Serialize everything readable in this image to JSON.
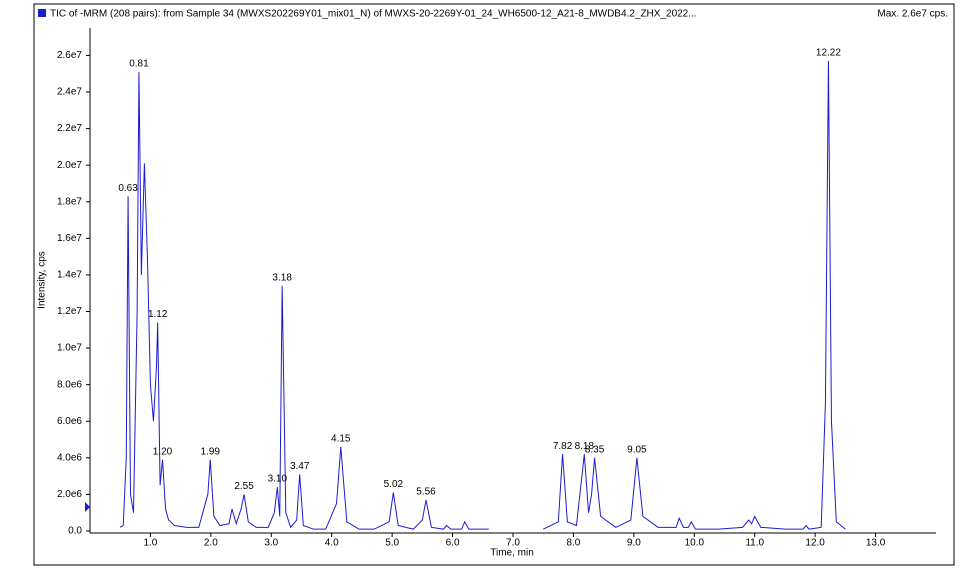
{
  "chart_data": {
    "type": "line",
    "title": "TIC of -MRM (208 pairs): from Sample 34 (MWXS202269Y01_mix01_N) of MWXS-20-2269Y-01_24_WH6500-12_A21-8_MWDB4.2_ZHX_2022...",
    "max_label": "Max. 2.6e7 cps.",
    "x_label": "Time, min",
    "y_label": "Intensity, cps",
    "xlim": [
      0,
      14
    ],
    "ylim": [
      0,
      27500000
    ],
    "xticks": [
      {
        "value": 1,
        "label": "1.0"
      },
      {
        "value": 2,
        "label": "2.0"
      },
      {
        "value": 3,
        "label": "3.0"
      },
      {
        "value": 4,
        "label": "4.0"
      },
      {
        "value": 5,
        "label": "5.0"
      },
      {
        "value": 6,
        "label": "6.0"
      },
      {
        "value": 7,
        "label": "7.0"
      },
      {
        "value": 8,
        "label": "8.0"
      },
      {
        "value": 9,
        "label": "9.0"
      },
      {
        "value": 10,
        "label": "10.0"
      },
      {
        "value": 11,
        "label": "11.0"
      },
      {
        "value": 12,
        "label": "12.0"
      },
      {
        "value": 13,
        "label": "13.0"
      }
    ],
    "yticks": [
      {
        "value": 0,
        "label": "0.0"
      },
      {
        "value": 2000000,
        "label": "2.0e6"
      },
      {
        "value": 4000000,
        "label": "4.0e6"
      },
      {
        "value": 6000000,
        "label": "6.0e6"
      },
      {
        "value": 8000000,
        "label": "8.0e6"
      },
      {
        "value": 10000000,
        "label": "1.0e7"
      },
      {
        "value": 12000000,
        "label": "1.2e7"
      },
      {
        "value": 14000000,
        "label": "1.4e7"
      },
      {
        "value": 16000000,
        "label": "1.6e7"
      },
      {
        "value": 18000000,
        "label": "1.8e7"
      },
      {
        "value": 20000000,
        "label": "2.0e7"
      },
      {
        "value": 22000000,
        "label": "2.2e7"
      },
      {
        "value": 24000000,
        "label": "2.4e7"
      },
      {
        "value": 26000000,
        "label": "2.6e7"
      }
    ],
    "x": [
      0.5,
      0.55,
      0.6,
      0.63,
      0.67,
      0.72,
      0.78,
      0.81,
      0.85,
      0.9,
      0.95,
      1.0,
      1.05,
      1.1,
      1.12,
      1.16,
      1.2,
      1.25,
      1.3,
      1.4,
      1.6,
      1.8,
      1.95,
      1.99,
      2.05,
      2.15,
      2.3,
      2.35,
      2.42,
      2.5,
      2.55,
      2.62,
      2.75,
      2.95,
      3.05,
      3.1,
      3.14,
      3.18,
      3.24,
      3.32,
      3.42,
      3.47,
      3.53,
      3.7,
      3.9,
      4.08,
      4.15,
      4.25,
      4.45,
      4.7,
      4.95,
      5.02,
      5.1,
      5.35,
      5.5,
      5.56,
      5.65,
      5.85,
      5.9,
      5.97,
      6.15,
      6.2,
      6.27,
      6.45,
      6.6,
      7.0,
      7.5,
      7.75,
      7.82,
      7.9,
      8.05,
      8.18,
      8.25,
      8.3,
      8.35,
      8.45,
      8.7,
      8.95,
      9.05,
      9.15,
      9.4,
      9.7,
      9.75,
      9.82,
      9.9,
      9.95,
      10.02,
      10.4,
      10.8,
      10.9,
      10.95,
      11.0,
      11.1,
      11.5,
      11.8,
      11.85,
      11.9,
      12.1,
      12.17,
      12.22,
      12.27,
      12.35,
      12.5
    ],
    "series": [
      {
        "name": "TIC of -MRM (208 pairs)",
        "color": "#1c1cd0",
        "values": [
          200000,
          300000,
          4000000,
          18300000,
          2000000,
          1000000,
          12000000,
          25100000,
          14000000,
          20100000,
          15000000,
          8000000,
          6000000,
          9000000,
          11400000,
          2500000,
          3900000,
          1200000,
          600000,
          300000,
          200000,
          200000,
          2000000,
          3900000,
          800000,
          300000,
          400000,
          1200000,
          400000,
          1200000,
          2000000,
          500000,
          200000,
          200000,
          1000000,
          2400000,
          800000,
          13400000,
          1000000,
          200000,
          600000,
          3100000,
          300000,
          100000,
          100000,
          1500000,
          4600000,
          500000,
          100000,
          100000,
          500000,
          2100000,
          300000,
          100000,
          600000,
          1700000,
          200000,
          100000,
          300000,
          100000,
          100000,
          500000,
          100000,
          100000,
          100000,
          null,
          100000,
          500000,
          4200000,
          500000,
          300000,
          4200000,
          1000000,
          2000000,
          4000000,
          800000,
          200000,
          600000,
          4000000,
          800000,
          200000,
          200000,
          700000,
          200000,
          200000,
          500000,
          100000,
          100000,
          200000,
          600000,
          400000,
          800000,
          200000,
          100000,
          100000,
          300000,
          100000,
          200000,
          7000000,
          25700000,
          6000000,
          500000,
          100000
        ]
      }
    ],
    "peak_labels": [
      {
        "value": 0.63,
        "label": "0.63"
      },
      {
        "value": 0.81,
        "label": "0.81"
      },
      {
        "value": 1.12,
        "label": "1.12"
      },
      {
        "value": 1.2,
        "label": "1.20"
      },
      {
        "value": 1.99,
        "label": "1.99"
      },
      {
        "value": 2.55,
        "label": "2.55"
      },
      {
        "value": 3.1,
        "label": "3.10"
      },
      {
        "value": 3.18,
        "label": "3.18"
      },
      {
        "value": 3.47,
        "label": "3.47"
      },
      {
        "value": 4.15,
        "label": "4.15"
      },
      {
        "value": 5.02,
        "label": "5.02"
      },
      {
        "value": 5.56,
        "label": "5.56"
      },
      {
        "value": 7.82,
        "label": "7.82"
      },
      {
        "value": 8.18,
        "label": "8.18"
      },
      {
        "value": 8.35,
        "label": "8.35"
      },
      {
        "value": 9.05,
        "label": "9.05"
      },
      {
        "value": 12.22,
        "label": "12.22"
      }
    ],
    "grid": false
  }
}
